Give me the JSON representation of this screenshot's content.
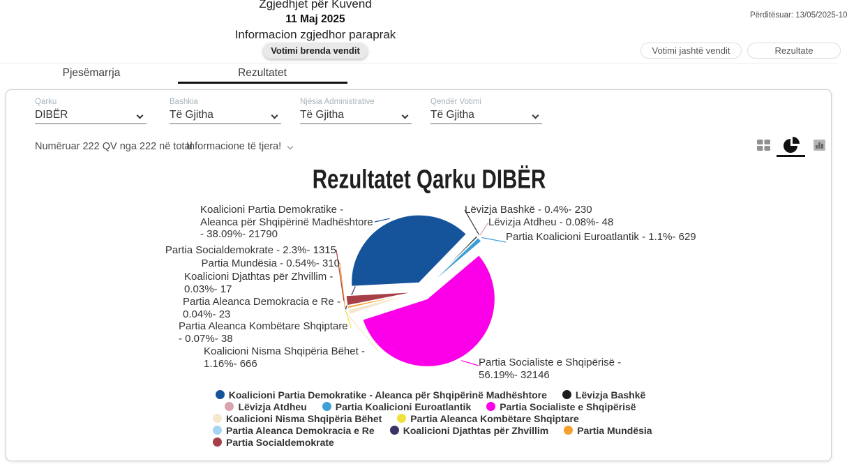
{
  "header": {
    "title": "Zgjedhjet për Kuvend",
    "date": "11 Maj 2025",
    "subtitle": "Informacion zgjedhor paraprak",
    "updated": "Përditësuar: 13/05/2025-10",
    "btn_votimi_brenda": "Votimi brenda vendit",
    "btn_votimi_jashte": "Votimi jashtë vendit",
    "btn_rezultate": "Rezultate"
  },
  "tabs": {
    "participation": "Pjesëmarrja",
    "results": "Rezultatet"
  },
  "filters": [
    {
      "label": "Qarku",
      "value": "DIBËR"
    },
    {
      "label": "Bashkia",
      "value": "Të Gjitha"
    },
    {
      "label": "Njësia Administrative",
      "value": "Të Gjitha"
    },
    {
      "label": "Qendër Votimi",
      "value": "Të Gjitha"
    }
  ],
  "status": {
    "counted": "Numëruar 222 QV nga 222 në total",
    "more_info": "Informacione të tjera!"
  },
  "chart_data": {
    "type": "pie",
    "title": "Rezultatet Qarku DIBËR",
    "start_angle": 267,
    "legend_position": "bottom",
    "slices": [
      {
        "name": "Koalicioni Partia Demokratike - Aleanca për Shqipërinë Madhështore",
        "pct": 38.09,
        "votes": 21790,
        "color": "#15539b",
        "label": "Koalicioni Partia Demokratike - Aleanca për Shqipërinë Madhështore - 38.09%- 21790"
      },
      {
        "name": "Lëvizja Bashkë",
        "pct": 0.4,
        "votes": 230,
        "color": "#1c1c1c",
        "label": "Lëvizja Bashkë - 0.4%- 230"
      },
      {
        "name": "Lëvizja Atdheu",
        "pct": 0.08,
        "votes": 48,
        "color": "#d9a3ad",
        "label": "Lëvizja Atdheu - 0.08%- 48"
      },
      {
        "name": "Partia Koalicioni Euroatlantik",
        "pct": 1.1,
        "votes": 629,
        "color": "#3d9fd6",
        "label": "Partia Koalicioni Euroatlantik - 1.1%- 629"
      },
      {
        "name": "Partia Socialiste e Shqipërisë",
        "pct": 56.19,
        "votes": 32146,
        "color": "#fb00e8",
        "label": "Partia Socialiste e Shqipërisë - 56.19%- 32146"
      },
      {
        "name": "Koalicioni Nisma Shqipëria Bëhet",
        "pct": 1.16,
        "votes": 666,
        "color": "#f4e7cd",
        "label": "Koalicioni Nisma Shqipëria Bëhet - 1.16%- 666"
      },
      {
        "name": "Partia Aleanca Kombëtare Shqiptare",
        "pct": 0.07,
        "votes": 38,
        "color": "#f0e23c",
        "label": "Partia Aleanca Kombëtare Shqiptare - 0.07%- 38"
      },
      {
        "name": "Partia Aleanca Demokracia e Re",
        "pct": 0.04,
        "votes": 23,
        "color": "#a5d5f2",
        "label": "Partia Aleanca Demokracia e Re - 0.04%- 23"
      },
      {
        "name": "Koalicioni Djathtas për Zhvillim",
        "pct": 0.03,
        "votes": 17,
        "color": "#3b3366",
        "label": "Koalicioni Djathtas për Zhvillim - 0.03%- 17"
      },
      {
        "name": "Partia Mundësia",
        "pct": 0.54,
        "votes": 310,
        "color": "#f5a02e",
        "label": "Partia Mundësia - 0.54%- 310"
      },
      {
        "name": "Partia Socialdemokrate",
        "pct": 2.3,
        "votes": 1315,
        "color": "#a63f48",
        "label": "Partia Socialdemokrate - 2.3%- 1315"
      }
    ]
  }
}
